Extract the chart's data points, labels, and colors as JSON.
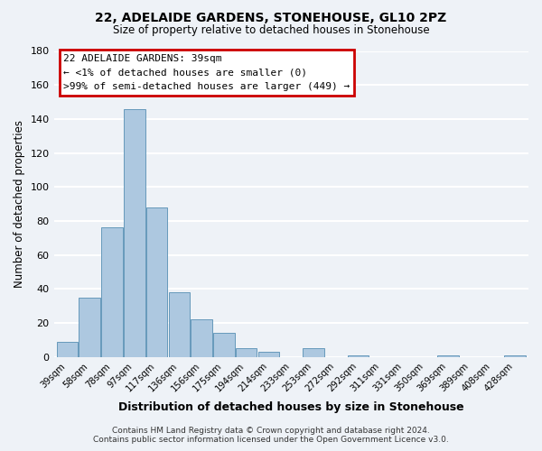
{
  "title": "22, ADELAIDE GARDENS, STONEHOUSE, GL10 2PZ",
  "subtitle": "Size of property relative to detached houses in Stonehouse",
  "xlabel": "Distribution of detached houses by size in Stonehouse",
  "ylabel": "Number of detached properties",
  "bar_labels": [
    "39sqm",
    "58sqm",
    "78sqm",
    "97sqm",
    "117sqm",
    "136sqm",
    "156sqm",
    "175sqm",
    "194sqm",
    "214sqm",
    "233sqm",
    "253sqm",
    "272sqm",
    "292sqm",
    "311sqm",
    "331sqm",
    "350sqm",
    "369sqm",
    "389sqm",
    "408sqm",
    "428sqm"
  ],
  "bar_heights": [
    9,
    35,
    76,
    146,
    88,
    38,
    22,
    14,
    5,
    3,
    0,
    5,
    0,
    1,
    0,
    0,
    0,
    1,
    0,
    0,
    1
  ],
  "bar_color": "#adc8e0",
  "bar_edgecolor": "#6699bb",
  "ylim": [
    0,
    180
  ],
  "yticks": [
    0,
    20,
    40,
    60,
    80,
    100,
    120,
    140,
    160,
    180
  ],
  "annotation_title": "22 ADELAIDE GARDENS: 39sqm",
  "annotation_line1": "← <1% of detached houses are smaller (0)",
  "annotation_line2": ">99% of semi-detached houses are larger (449) →",
  "annotation_box_color": "#cc0000",
  "footer_line1": "Contains HM Land Registry data © Crown copyright and database right 2024.",
  "footer_line2": "Contains public sector information licensed under the Open Government Licence v3.0.",
  "bg_color": "#eef2f7",
  "plot_bg_color": "#eef2f7",
  "grid_color": "#ffffff"
}
